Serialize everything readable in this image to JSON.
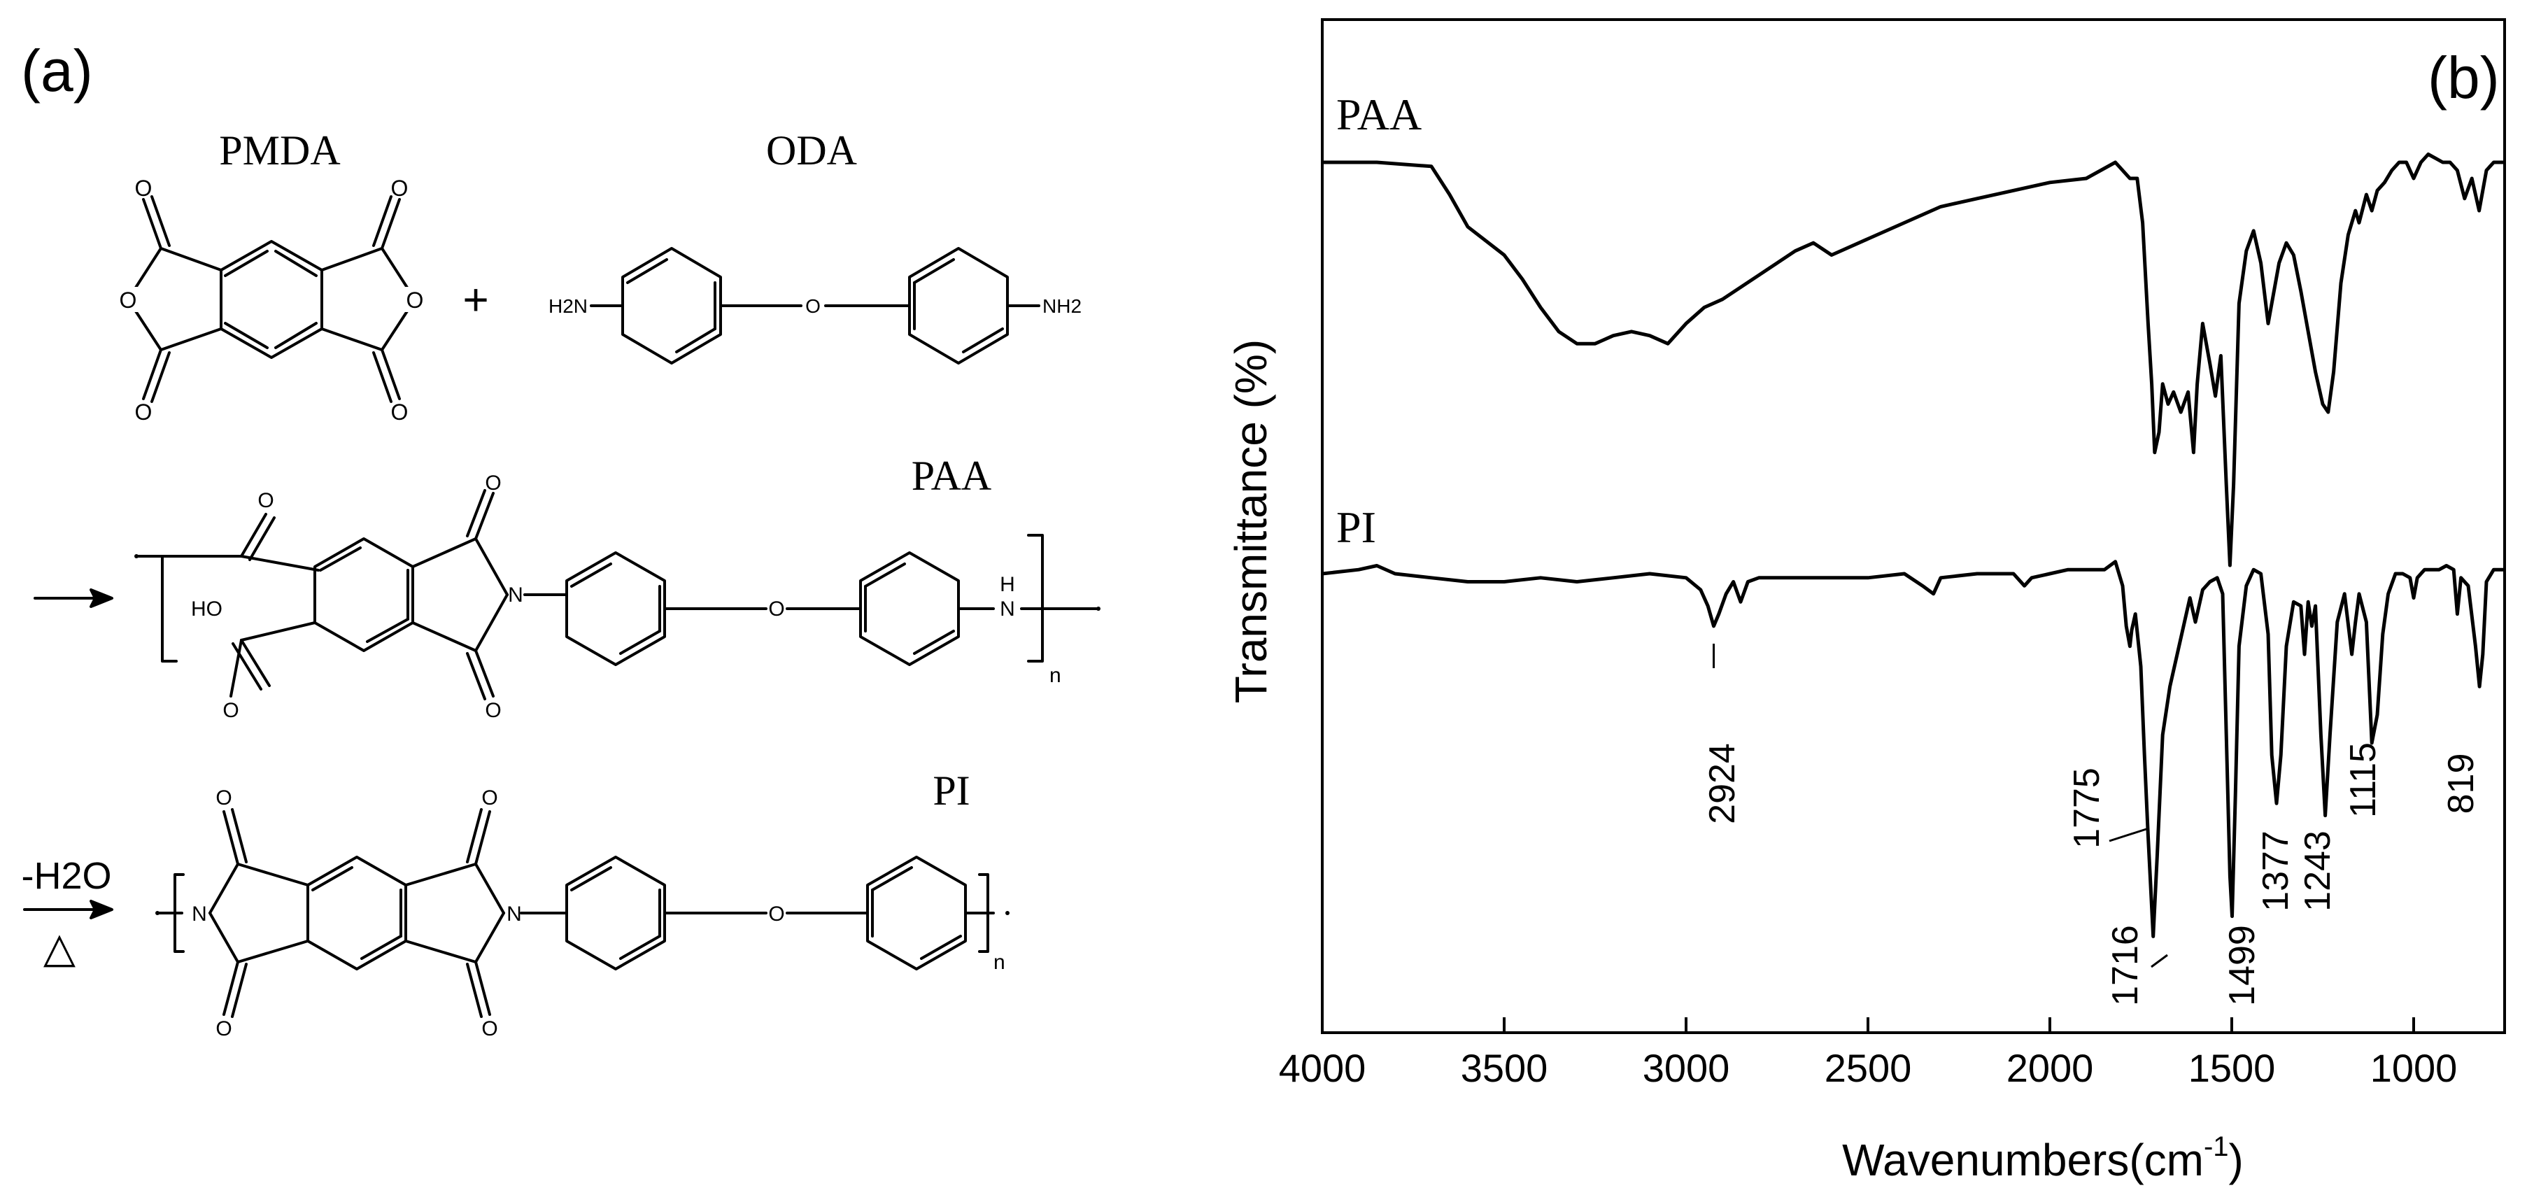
{
  "panel_a": {
    "label": "(a)",
    "reactants": {
      "left": {
        "name": "PMDA"
      },
      "right": {
        "name": "ODA",
        "amine_left": "H2N",
        "amine_right": "NH2"
      },
      "plus": "+"
    },
    "paa_step": {
      "name": "PAA",
      "oh_group": "HO",
      "nh_group": "H",
      "n_label": "n"
    },
    "pi_step": {
      "name": "PI",
      "condition_top": "-H2O",
      "condition_bottom": "△",
      "n_label": "n"
    },
    "atoms": {
      "o": "O",
      "n": "N"
    }
  },
  "chart_data": {
    "type": "line",
    "panel_label": "(b)",
    "xlabel": "Wavenumbers(cm",
    "xlabel_sup": "-1",
    "xlabel_close": ")",
    "ylabel": "Transmittance (%)",
    "xlim": [
      4000,
      750
    ],
    "x_ticks": [
      4000,
      3500,
      3000,
      2500,
      2000,
      1500,
      1000
    ],
    "y_ticks_shown": false,
    "series": [
      {
        "name": "PAA",
        "color": "#000000",
        "points": [
          [
            4000,
            100
          ],
          [
            3850,
            100
          ],
          [
            3700,
            99
          ],
          [
            3650,
            92
          ],
          [
            3600,
            84
          ],
          [
            3500,
            77
          ],
          [
            3450,
            71
          ],
          [
            3400,
            64
          ],
          [
            3350,
            58
          ],
          [
            3300,
            55
          ],
          [
            3250,
            55
          ],
          [
            3200,
            57
          ],
          [
            3150,
            58
          ],
          [
            3100,
            57
          ],
          [
            3050,
            55
          ],
          [
            3000,
            60
          ],
          [
            2950,
            64
          ],
          [
            2900,
            66
          ],
          [
            2800,
            72
          ],
          [
            2700,
            78
          ],
          [
            2650,
            80
          ],
          [
            2600,
            77
          ],
          [
            2500,
            81
          ],
          [
            2400,
            85
          ],
          [
            2300,
            89
          ],
          [
            2200,
            91
          ],
          [
            2100,
            93
          ],
          [
            2000,
            95
          ],
          [
            1900,
            96
          ],
          [
            1820,
            100
          ],
          [
            1780,
            96
          ],
          [
            1760,
            96
          ],
          [
            1745,
            85
          ],
          [
            1730,
            60
          ],
          [
            1720,
            45
          ],
          [
            1712,
            28
          ],
          [
            1700,
            33
          ],
          [
            1690,
            45
          ],
          [
            1675,
            40
          ],
          [
            1660,
            43
          ],
          [
            1640,
            38
          ],
          [
            1620,
            43
          ],
          [
            1605,
            28
          ],
          [
            1595,
            45
          ],
          [
            1580,
            60
          ],
          [
            1560,
            50
          ],
          [
            1545,
            42
          ],
          [
            1530,
            52
          ],
          [
            1515,
            20
          ],
          [
            1505,
            0
          ],
          [
            1495,
            20
          ],
          [
            1480,
            65
          ],
          [
            1460,
            78
          ],
          [
            1440,
            83
          ],
          [
            1420,
            75
          ],
          [
            1400,
            60
          ],
          [
            1390,
            65
          ],
          [
            1370,
            75
          ],
          [
            1350,
            80
          ],
          [
            1330,
            77
          ],
          [
            1310,
            68
          ],
          [
            1290,
            58
          ],
          [
            1270,
            48
          ],
          [
            1250,
            40
          ],
          [
            1235,
            38
          ],
          [
            1220,
            48
          ],
          [
            1200,
            70
          ],
          [
            1180,
            82
          ],
          [
            1160,
            88
          ],
          [
            1150,
            85
          ],
          [
            1130,
            92
          ],
          [
            1115,
            88
          ],
          [
            1100,
            93
          ],
          [
            1080,
            95
          ],
          [
            1060,
            98
          ],
          [
            1040,
            100
          ],
          [
            1020,
            100
          ],
          [
            1000,
            96
          ],
          [
            980,
            100
          ],
          [
            960,
            102
          ],
          [
            940,
            101
          ],
          [
            920,
            100
          ],
          [
            900,
            100
          ],
          [
            880,
            98
          ],
          [
            860,
            91
          ],
          [
            840,
            96
          ],
          [
            820,
            88
          ],
          [
            800,
            98
          ],
          [
            780,
            100
          ],
          [
            750,
            100
          ]
        ]
      },
      {
        "name": "PI",
        "color": "#000000",
        "points": [
          [
            4000,
            100
          ],
          [
            3900,
            101
          ],
          [
            3850,
            102
          ],
          [
            3800,
            100
          ],
          [
            3700,
            99
          ],
          [
            3600,
            98
          ],
          [
            3500,
            98
          ],
          [
            3400,
            99
          ],
          [
            3300,
            98
          ],
          [
            3200,
            99
          ],
          [
            3100,
            100
          ],
          [
            3000,
            99
          ],
          [
            2960,
            96
          ],
          [
            2940,
            92
          ],
          [
            2924,
            87
          ],
          [
            2910,
            90
          ],
          [
            2890,
            95
          ],
          [
            2870,
            98
          ],
          [
            2850,
            93
          ],
          [
            2830,
            98
          ],
          [
            2800,
            99
          ],
          [
            2700,
            99
          ],
          [
            2600,
            99
          ],
          [
            2500,
            99
          ],
          [
            2400,
            100
          ],
          [
            2350,
            97
          ],
          [
            2320,
            95
          ],
          [
            2300,
            99
          ],
          [
            2200,
            100
          ],
          [
            2100,
            100
          ],
          [
            2070,
            97
          ],
          [
            2050,
            99
          ],
          [
            2000,
            100
          ],
          [
            1950,
            101
          ],
          [
            1900,
            101
          ],
          [
            1850,
            101
          ],
          [
            1820,
            103
          ],
          [
            1800,
            97
          ],
          [
            1790,
            87
          ],
          [
            1780,
            82
          ],
          [
            1775,
            86
          ],
          [
            1765,
            90
          ],
          [
            1750,
            77
          ],
          [
            1740,
            55
          ],
          [
            1730,
            35
          ],
          [
            1716,
            10
          ],
          [
            1705,
            30
          ],
          [
            1690,
            60
          ],
          [
            1670,
            72
          ],
          [
            1650,
            80
          ],
          [
            1630,
            88
          ],
          [
            1615,
            94
          ],
          [
            1600,
            88
          ],
          [
            1580,
            96
          ],
          [
            1560,
            98
          ],
          [
            1540,
            99
          ],
          [
            1525,
            95
          ],
          [
            1515,
            60
          ],
          [
            1505,
            25
          ],
          [
            1499,
            15
          ],
          [
            1490,
            45
          ],
          [
            1480,
            82
          ],
          [
            1460,
            97
          ],
          [
            1440,
            101
          ],
          [
            1420,
            100
          ],
          [
            1400,
            85
          ],
          [
            1390,
            55
          ],
          [
            1377,
            43
          ],
          [
            1365,
            55
          ],
          [
            1350,
            82
          ],
          [
            1330,
            93
          ],
          [
            1310,
            92
          ],
          [
            1300,
            80
          ],
          [
            1290,
            93
          ],
          [
            1280,
            87
          ],
          [
            1270,
            92
          ],
          [
            1255,
            60
          ],
          [
            1243,
            40
          ],
          [
            1230,
            60
          ],
          [
            1210,
            88
          ],
          [
            1190,
            95
          ],
          [
            1170,
            80
          ],
          [
            1160,
            88
          ],
          [
            1150,
            95
          ],
          [
            1130,
            88
          ],
          [
            1115,
            58
          ],
          [
            1100,
            65
          ],
          [
            1085,
            85
          ],
          [
            1070,
            95
          ],
          [
            1050,
            100
          ],
          [
            1030,
            100
          ],
          [
            1010,
            99
          ],
          [
            1000,
            94
          ],
          [
            990,
            99
          ],
          [
            970,
            101
          ],
          [
            950,
            101
          ],
          [
            930,
            101
          ],
          [
            910,
            102
          ],
          [
            890,
            101
          ],
          [
            880,
            90
          ],
          [
            870,
            99
          ],
          [
            850,
            97
          ],
          [
            830,
            82
          ],
          [
            819,
            72
          ],
          [
            810,
            80
          ],
          [
            800,
            98
          ],
          [
            780,
            101
          ],
          [
            750,
            101
          ]
        ]
      }
    ],
    "annotations": [
      "2924",
      "1775",
      "1716",
      "1499",
      "1377",
      "1243",
      "1115",
      "819"
    ]
  }
}
